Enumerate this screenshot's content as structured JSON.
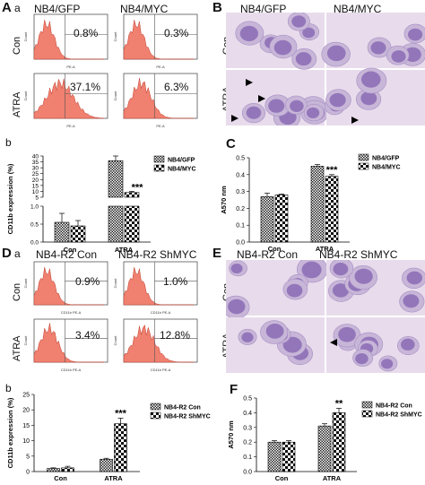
{
  "panelA": {
    "letter": "A",
    "sub_a": "a",
    "sub_b": "b",
    "col_titles": [
      "NB4/GFP",
      "NB4/MYC"
    ],
    "row_labels": [
      "Con",
      "ATRA"
    ],
    "percents": [
      [
        "0.8%",
        "0.3%"
      ],
      [
        "37.1%",
        "6.3%"
      ]
    ],
    "axis_tick": "PE-A"
  },
  "panelB": {
    "letter": "B",
    "col_titles": [
      "NB4/GFP",
      "NB4/MYC"
    ],
    "row_labels": [
      "Con",
      "ATRA"
    ]
  },
  "panelC": {
    "letter": "C"
  },
  "panelD": {
    "letter": "D",
    "sub_a": "a",
    "sub_b": "b",
    "col_titles": [
      "NB4-R2 Con",
      "NB4-R2 ShMYC"
    ],
    "row_labels": [
      "Con",
      "ATRA"
    ],
    "percents": [
      [
        "0.9%",
        "1.0%"
      ],
      [
        "3.4%",
        "12.8%"
      ]
    ],
    "axis_tick": "CD11b PE-A"
  },
  "panelE": {
    "letter": "E",
    "col_titles": [
      "NB4-R2 Con",
      "NB4-R2 ShMYC"
    ],
    "row_labels": [
      "Con",
      "ATRA"
    ]
  },
  "panelF": {
    "letter": "F"
  },
  "colors": {
    "histogram": "#f08070",
    "cell_bg": "#e8dcec",
    "nucleus": "#8a6bb5"
  },
  "chart_data": [
    {
      "id": "Ab",
      "type": "bar",
      "categories": [
        "Con",
        "ATRA"
      ],
      "series": [
        {
          "name": "NB4/GFP",
          "values": [
            0.55,
            36
          ],
          "errors": [
            0.25,
            4
          ]
        },
        {
          "name": "NB4/MYC",
          "values": [
            0.45,
            9
          ],
          "errors": [
            0.15,
            1
          ]
        }
      ],
      "ylabel": "CD11b expression (%)",
      "yticks_lower": [
        "0.0",
        "0.5",
        "1.0"
      ],
      "yticks_upper": [
        "5",
        "10",
        "15",
        "20",
        "25",
        "30",
        "35",
        "40"
      ],
      "annotation": "***"
    },
    {
      "id": "C",
      "type": "bar",
      "categories": [
        "Con",
        "ATRA"
      ],
      "series": [
        {
          "name": "NB4/GFP",
          "values": [
            0.27,
            0.45
          ],
          "errors": [
            0.02,
            0.01
          ]
        },
        {
          "name": "NB4/MYC",
          "values": [
            0.28,
            0.39
          ],
          "errors": [
            0.005,
            0.01
          ]
        }
      ],
      "ylabel": "A570 nm",
      "ylim": [
        0,
        0.5
      ],
      "yticks": [
        "0.0",
        "0.1",
        "0.2",
        "0.3",
        "0.4",
        "0.5"
      ],
      "annotation": "***"
    },
    {
      "id": "Db",
      "type": "bar",
      "categories": [
        "Con",
        "ATRA"
      ],
      "series": [
        {
          "name": "NB4-R2 Con",
          "values": [
            1,
            4
          ],
          "errors": [
            0.2,
            0.3
          ]
        },
        {
          "name": "NB4-R2 ShMYC",
          "values": [
            1.2,
            15.5
          ],
          "errors": [
            0.5,
            1.8
          ]
        }
      ],
      "ylabel": "CD11b expression (%)",
      "ylim": [
        0,
        25
      ],
      "yticks": [
        "0",
        "5",
        "10",
        "15",
        "20",
        "25"
      ],
      "annotation": "***"
    },
    {
      "id": "F",
      "type": "bar",
      "categories": [
        "Con",
        "ATRA"
      ],
      "series": [
        {
          "name": "NB4-R2 Con",
          "values": [
            0.2,
            0.31
          ],
          "errors": [
            0.01,
            0.015
          ]
        },
        {
          "name": "NB4-R2 ShMYC",
          "values": [
            0.2,
            0.4
          ],
          "errors": [
            0.01,
            0.03
          ]
        }
      ],
      "ylabel": "A570 nm",
      "ylim": [
        0,
        0.5
      ],
      "yticks": [
        "0.0",
        "0.1",
        "0.2",
        "0.3",
        "0.4",
        "0.5"
      ],
      "annotation": "**"
    }
  ]
}
